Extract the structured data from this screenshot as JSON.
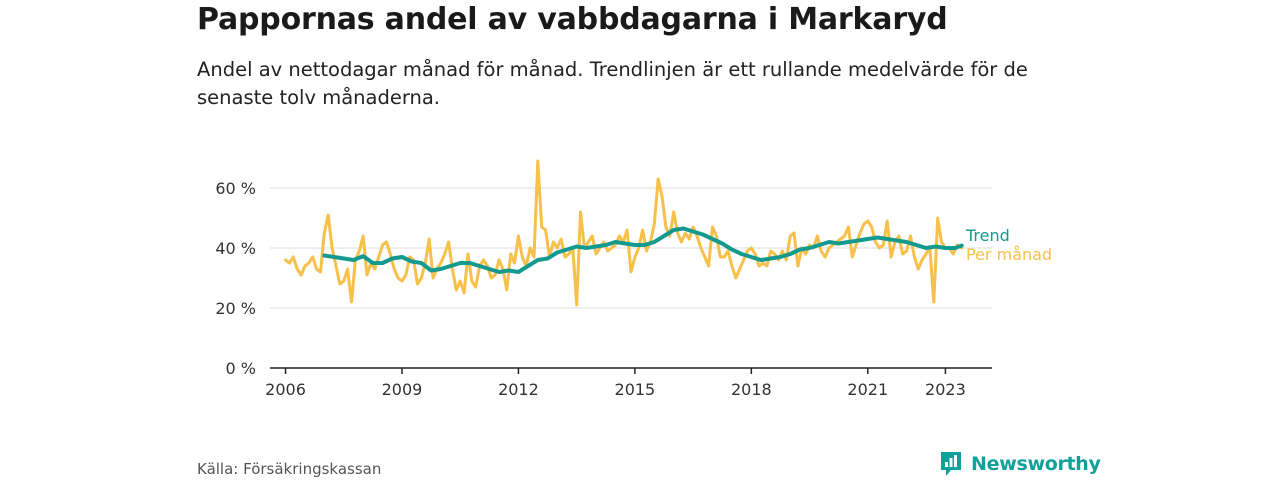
{
  "title": "Pappornas andel av vabbdagarna i Markaryd",
  "subtitle": "Andel av nettodagar månad för månad. Trendlinjen är ett rullande medelvärde för de senaste tolv månaderna.",
  "source": "Källa: Försäkringskassan",
  "brand": "Newsworthy",
  "colors": {
    "trend": "#13998e",
    "monthly": "#f7c04a",
    "grid": "#dddddd",
    "brand": "#10a19a"
  },
  "chart_data": {
    "type": "line",
    "title": "",
    "xlabel": "",
    "ylabel": "",
    "ylim": [
      0,
      70
    ],
    "y_ticks": [
      {
        "value": 0,
        "label": "0 %"
      },
      {
        "value": 20,
        "label": "20 %"
      },
      {
        "value": 40,
        "label": "40 %"
      },
      {
        "value": 60,
        "label": "60 %"
      }
    ],
    "x_ticks": [
      {
        "value": 2006,
        "label": "2006"
      },
      {
        "value": 2009,
        "label": "2009"
      },
      {
        "value": 2012,
        "label": "2012"
      },
      {
        "value": 2015,
        "label": "2015"
      },
      {
        "value": 2018,
        "label": "2018"
      },
      {
        "value": 2021,
        "label": "2021"
      },
      {
        "value": 2023,
        "label": "2023"
      }
    ],
    "xlim": [
      2005.6,
      2024.2
    ],
    "legend_placement": "right, at end of lines",
    "grid": true,
    "series": [
      {
        "name": "Trend",
        "color": "#13998e",
        "x": [
          2007.0,
          2007.25,
          2007.5,
          2007.75,
          2008.0,
          2008.25,
          2008.5,
          2008.75,
          2009.0,
          2009.25,
          2009.5,
          2009.75,
          2010.0,
          2010.25,
          2010.5,
          2010.75,
          2011.0,
          2011.25,
          2011.5,
          2011.75,
          2012.0,
          2012.25,
          2012.5,
          2012.75,
          2013.0,
          2013.25,
          2013.5,
          2013.75,
          2014.0,
          2014.25,
          2014.5,
          2014.75,
          2015.0,
          2015.25,
          2015.5,
          2015.75,
          2016.0,
          2016.25,
          2016.5,
          2016.75,
          2017.0,
          2017.25,
          2017.5,
          2017.75,
          2018.0,
          2018.25,
          2018.5,
          2018.75,
          2019.0,
          2019.25,
          2019.5,
          2019.75,
          2020.0,
          2020.25,
          2020.5,
          2020.75,
          2021.0,
          2021.25,
          2021.5,
          2021.75,
          2022.0,
          2022.25,
          2022.5,
          2022.75,
          2023.0,
          2023.25,
          2023.42
        ],
        "values": [
          37.5,
          37.0,
          36.5,
          36.0,
          37.3,
          35.0,
          35.0,
          36.5,
          37.0,
          35.5,
          35.0,
          32.5,
          33.0,
          34.0,
          35.0,
          35.0,
          34.0,
          33.0,
          32.0,
          32.5,
          32.0,
          34.0,
          36.0,
          36.5,
          38.5,
          39.5,
          40.5,
          40.0,
          40.5,
          41.0,
          42.0,
          41.5,
          41.0,
          41.0,
          42.0,
          44.0,
          46.0,
          46.5,
          45.5,
          44.5,
          43.0,
          41.5,
          39.5,
          38.0,
          37.0,
          36.0,
          36.5,
          37.0,
          38.0,
          39.5,
          40.0,
          41.0,
          42.0,
          41.5,
          42.0,
          42.5,
          43.0,
          43.5,
          43.0,
          42.5,
          42.0,
          41.0,
          40.0,
          40.5,
          40.0,
          40.0,
          40.8
        ]
      },
      {
        "name": "Per månad",
        "color": "#f7c04a",
        "x": [
          2006.0,
          2006.1,
          2006.2,
          2006.3,
          2006.4,
          2006.5,
          2006.6,
          2006.7,
          2006.8,
          2006.9,
          2007.0,
          2007.1,
          2007.2,
          2007.3,
          2007.4,
          2007.5,
          2007.6,
          2007.7,
          2007.8,
          2007.9,
          2008.0,
          2008.1,
          2008.2,
          2008.3,
          2008.4,
          2008.5,
          2008.6,
          2008.7,
          2008.8,
          2008.9,
          2009.0,
          2009.1,
          2009.2,
          2009.3,
          2009.4,
          2009.5,
          2009.6,
          2009.7,
          2009.8,
          2009.9,
          2010.0,
          2010.1,
          2010.2,
          2010.3,
          2010.4,
          2010.5,
          2010.6,
          2010.7,
          2010.8,
          2010.9,
          2011.0,
          2011.1,
          2011.2,
          2011.3,
          2011.4,
          2011.5,
          2011.6,
          2011.7,
          2011.8,
          2011.9,
          2012.0,
          2012.1,
          2012.2,
          2012.3,
          2012.4,
          2012.5,
          2012.6,
          2012.7,
          2012.8,
          2012.9,
          2013.0,
          2013.1,
          2013.2,
          2013.3,
          2013.4,
          2013.5,
          2013.6,
          2013.7,
          2013.8,
          2013.9,
          2014.0,
          2014.1,
          2014.2,
          2014.3,
          2014.4,
          2014.5,
          2014.6,
          2014.7,
          2014.8,
          2014.9,
          2015.0,
          2015.1,
          2015.2,
          2015.3,
          2015.4,
          2015.5,
          2015.6,
          2015.7,
          2015.8,
          2015.9,
          2016.0,
          2016.1,
          2016.2,
          2016.3,
          2016.4,
          2016.5,
          2016.6,
          2016.7,
          2016.8,
          2016.9,
          2017.0,
          2017.1,
          2017.2,
          2017.3,
          2017.4,
          2017.5,
          2017.6,
          2017.7,
          2017.8,
          2017.9,
          2018.0,
          2018.1,
          2018.2,
          2018.3,
          2018.4,
          2018.5,
          2018.6,
          2018.7,
          2018.8,
          2018.9,
          2019.0,
          2019.1,
          2019.2,
          2019.3,
          2019.4,
          2019.5,
          2019.6,
          2019.7,
          2019.8,
          2019.9,
          2020.0,
          2020.1,
          2020.2,
          2020.3,
          2020.4,
          2020.5,
          2020.6,
          2020.7,
          2020.8,
          2020.9,
          2021.0,
          2021.1,
          2021.2,
          2021.3,
          2021.4,
          2021.5,
          2021.6,
          2021.7,
          2021.8,
          2021.9,
          2022.0,
          2022.1,
          2022.2,
          2022.3,
          2022.4,
          2022.5,
          2022.6,
          2022.7,
          2022.8,
          2022.9,
          2023.0,
          2023.1,
          2023.2,
          2023.3,
          2023.42
        ],
        "values": [
          36,
          35,
          37,
          33,
          31,
          34,
          35,
          37,
          33,
          32,
          45,
          51,
          40,
          34,
          28,
          29,
          33,
          22,
          36,
          39,
          44,
          31,
          35,
          33,
          37,
          41,
          42,
          38,
          33,
          30,
          29,
          31,
          37,
          36,
          28,
          30,
          35,
          43,
          30,
          33,
          35,
          38,
          42,
          33,
          26,
          29,
          25,
          38,
          29,
          27,
          34,
          36,
          34,
          30,
          31,
          36,
          33,
          26,
          38,
          35,
          44,
          37,
          34,
          40,
          37,
          69,
          47,
          46,
          37,
          42,
          40,
          43,
          37,
          38,
          40,
          21,
          52,
          40,
          42,
          44,
          38,
          40,
          42,
          39,
          40,
          41,
          44,
          42,
          46,
          32,
          37,
          40,
          46,
          39,
          42,
          48,
          63,
          57,
          47,
          44,
          52,
          45,
          42,
          45,
          43,
          47,
          44,
          40,
          37,
          34,
          47,
          44,
          37,
          37,
          39,
          34,
          30,
          33,
          36,
          39,
          40,
          38,
          34,
          35,
          34,
          39,
          38,
          36,
          39,
          36,
          44,
          45,
          34,
          40,
          38,
          41,
          40,
          44,
          39,
          37,
          40,
          41,
          42,
          43,
          44,
          47,
          37,
          41,
          45,
          48,
          49,
          47,
          42,
          40,
          41,
          49,
          37,
          42,
          44,
          38,
          39,
          44,
          37,
          33,
          36,
          38,
          40,
          22,
          50,
          42,
          40,
          40,
          38,
          41,
          40
        ]
      }
    ]
  }
}
